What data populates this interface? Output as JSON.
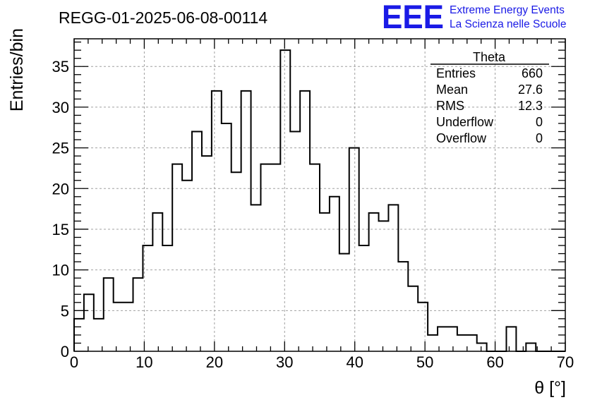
{
  "chart_data": {
    "type": "bar",
    "title": "REGG-01-2025-06-08-00114",
    "xlabel": "θ [°]",
    "ylabel": "Entries/bin",
    "xlim": [
      0,
      70
    ],
    "ylim": [
      0,
      38.4
    ],
    "grid": true,
    "bin_width": 1.4,
    "x_ticks": [
      0,
      10,
      20,
      30,
      40,
      50,
      60,
      70
    ],
    "y_ticks": [
      0,
      5,
      10,
      15,
      20,
      25,
      30,
      35
    ],
    "values": [
      4,
      7,
      4,
      9,
      6,
      6,
      9,
      13,
      17,
      13,
      23,
      21,
      27,
      24,
      32,
      28,
      22,
      32,
      18,
      23,
      23,
      37,
      27,
      32,
      23,
      17,
      19,
      12,
      25,
      13,
      17,
      16,
      18,
      11,
      8,
      6,
      2,
      3,
      3,
      2,
      2,
      1,
      0,
      0,
      3,
      0,
      1,
      0,
      0,
      0
    ],
    "color": "#000000",
    "stats": {
      "title": "Theta",
      "rows": [
        {
          "label": "Entries",
          "value": "660"
        },
        {
          "label": "Mean",
          "value": "27.6"
        },
        {
          "label": "RMS",
          "value": "12.3"
        },
        {
          "label": "Underflow",
          "value": "0"
        },
        {
          "label": "Overflow",
          "value": "0"
        }
      ]
    }
  },
  "logo": {
    "text": "EEE",
    "line1": "Extreme Energy Events",
    "line2": "La Scienza nelle Scuole",
    "color": "#1a1ae6"
  }
}
